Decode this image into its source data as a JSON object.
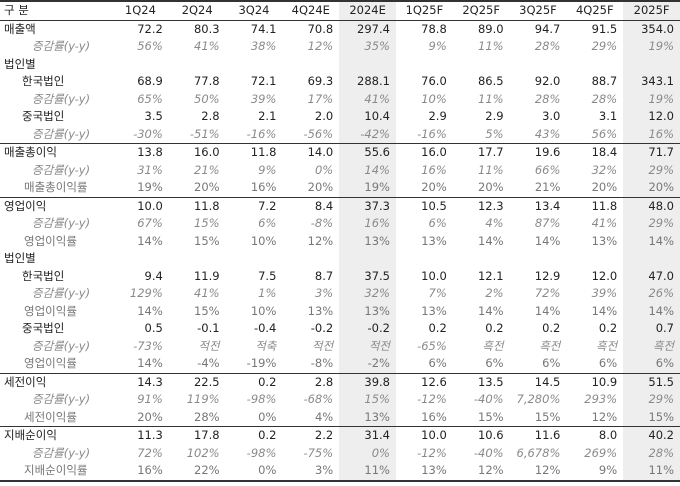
{
  "headers": [
    "구 분",
    "1Q24",
    "2Q24",
    "3Q24",
    "4Q24E",
    "2024E",
    "1Q25F",
    "2Q25F",
    "3Q25F",
    "4Q25F",
    "2025F"
  ],
  "rows": [
    {
      "type": "main",
      "sectop": false,
      "label": "매출액",
      "values": [
        "72.2",
        "80.3",
        "74.1",
        "70.8",
        "297.4",
        "78.8",
        "89.0",
        "94.7",
        "91.5",
        "354.0"
      ]
    },
    {
      "type": "pct",
      "label": "증감률(y-y)",
      "values": [
        "56%",
        "41%",
        "38%",
        "12%",
        "35%",
        "9%",
        "11%",
        "28%",
        "29%",
        "19%"
      ]
    },
    {
      "type": "main",
      "label": "법인별",
      "values": [
        "",
        "",
        "",
        "",
        "",
        "",
        "",
        "",
        "",
        ""
      ]
    },
    {
      "type": "sub",
      "label": "한국법인",
      "values": [
        "68.9",
        "77.8",
        "72.1",
        "69.3",
        "288.1",
        "76.0",
        "86.5",
        "92.0",
        "88.7",
        "343.1"
      ]
    },
    {
      "type": "pct",
      "label": "증감률(y-y)",
      "values": [
        "65%",
        "50%",
        "39%",
        "17%",
        "41%",
        "10%",
        "11%",
        "28%",
        "28%",
        "19%"
      ]
    },
    {
      "type": "sub",
      "label": "중국법인",
      "values": [
        "3.5",
        "2.8",
        "2.1",
        "2.0",
        "10.4",
        "2.9",
        "2.9",
        "3.0",
        "3.1",
        "12.0"
      ]
    },
    {
      "type": "pct",
      "label": "증감률(y-y)",
      "values": [
        "-30%",
        "-51%",
        "-16%",
        "-56%",
        "-42%",
        "-16%",
        "5%",
        "43%",
        "56%",
        "16%"
      ]
    },
    {
      "type": "main",
      "sectop": true,
      "label": "매출총이익",
      "values": [
        "13.8",
        "16.0",
        "11.8",
        "14.0",
        "55.6",
        "16.0",
        "17.7",
        "19.6",
        "18.4",
        "71.7"
      ]
    },
    {
      "type": "pct",
      "label": "증감률(y-y)",
      "values": [
        "31%",
        "21%",
        "9%",
        "0%",
        "14%",
        "16%",
        "11%",
        "66%",
        "32%",
        "29%"
      ]
    },
    {
      "type": "ratio",
      "label": "매출총이익률",
      "values": [
        "19%",
        "20%",
        "16%",
        "20%",
        "19%",
        "20%",
        "20%",
        "21%",
        "20%",
        "20%"
      ]
    },
    {
      "type": "main",
      "sectop": true,
      "label": "영업이익",
      "values": [
        "10.0",
        "11.8",
        "7.2",
        "8.4",
        "37.3",
        "10.5",
        "12.3",
        "13.4",
        "11.8",
        "48.0"
      ]
    },
    {
      "type": "pct",
      "label": "증감률(y-y)",
      "values": [
        "67%",
        "15%",
        "6%",
        "-8%",
        "16%",
        "6%",
        "4%",
        "87%",
        "41%",
        "29%"
      ]
    },
    {
      "type": "ratio",
      "label": "영업이익률",
      "values": [
        "14%",
        "15%",
        "10%",
        "12%",
        "13%",
        "13%",
        "14%",
        "14%",
        "13%",
        "14%"
      ]
    },
    {
      "type": "main",
      "label": "법인별",
      "values": [
        "",
        "",
        "",
        "",
        "",
        "",
        "",
        "",
        "",
        ""
      ]
    },
    {
      "type": "sub",
      "label": "한국법인",
      "values": [
        "9.4",
        "11.9",
        "7.5",
        "8.7",
        "37.5",
        "10.0",
        "12.1",
        "12.9",
        "12.0",
        "47.0"
      ]
    },
    {
      "type": "pct",
      "label": "증감률(y-y)",
      "values": [
        "129%",
        "41%",
        "1%",
        "3%",
        "32%",
        "7%",
        "2%",
        "72%",
        "39%",
        "26%"
      ]
    },
    {
      "type": "ratio",
      "label": "영업이익률",
      "values": [
        "14%",
        "15%",
        "10%",
        "13%",
        "13%",
        "13%",
        "14%",
        "14%",
        "14%",
        "14%"
      ]
    },
    {
      "type": "sub",
      "label": "중국법인",
      "values": [
        "0.5",
        "-0.1",
        "-0.4",
        "-0.2",
        "-0.2",
        "0.2",
        "0.2",
        "0.2",
        "0.2",
        "0.7"
      ]
    },
    {
      "type": "pct",
      "label": "증감률(y-y)",
      "values": [
        "-73%",
        "적전",
        "적축",
        "적전",
        "적전",
        "-65%",
        "흑전",
        "흑전",
        "흑전",
        "흑전"
      ]
    },
    {
      "type": "ratio",
      "label": "영업이익률",
      "values": [
        "14%",
        "-4%",
        "-19%",
        "-8%",
        "-2%",
        "6%",
        "6%",
        "6%",
        "6%",
        "6%"
      ]
    },
    {
      "type": "main",
      "sectop": true,
      "label": "세전이익",
      "values": [
        "14.3",
        "22.5",
        "0.2",
        "2.8",
        "39.8",
        "12.6",
        "13.5",
        "14.5",
        "10.9",
        "51.5"
      ]
    },
    {
      "type": "pct",
      "label": "증감률(y-y)",
      "values": [
        "91%",
        "119%",
        "-98%",
        "-68%",
        "15%",
        "-12%",
        "-40%",
        "7,280%",
        "293%",
        "29%"
      ]
    },
    {
      "type": "ratio",
      "label": "세전이익률",
      "values": [
        "20%",
        "28%",
        "0%",
        "4%",
        "13%",
        "16%",
        "15%",
        "15%",
        "12%",
        "15%"
      ]
    },
    {
      "type": "main",
      "sectop": true,
      "label": "지배순이익",
      "values": [
        "11.3",
        "17.8",
        "0.2",
        "2.2",
        "31.4",
        "10.0",
        "10.6",
        "11.6",
        "8.0",
        "40.2"
      ]
    },
    {
      "type": "pct",
      "label": "증감률(y-y)",
      "values": [
        "72%",
        "102%",
        "-98%",
        "-75%",
        "0%",
        "-12%",
        "-40%",
        "6,678%",
        "269%",
        "28%"
      ]
    },
    {
      "type": "ratio",
      "last": true,
      "label": "지배순이익률",
      "values": [
        "16%",
        "22%",
        "0%",
        "3%",
        "11%",
        "13%",
        "12%",
        "12%",
        "9%",
        "11%"
      ]
    }
  ]
}
